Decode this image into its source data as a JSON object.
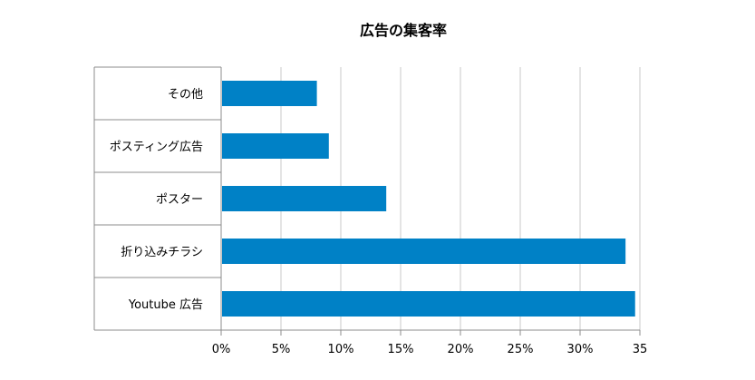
{
  "chart_data": {
    "type": "bar",
    "orientation": "horizontal",
    "title": "広告の集客率",
    "categories": [
      "その他",
      "ポスティング広告",
      "ポスター",
      "折り込みチラシ",
      "Youtube 広告"
    ],
    "values": [
      8,
      9,
      13.8,
      33.8,
      34.6
    ],
    "x_ticks": [
      "0%",
      "5%",
      "10%",
      "15%",
      "20%",
      "25%",
      "30%",
      "35"
    ],
    "xlim": [
      0,
      35
    ],
    "grid": true,
    "legend": "none",
    "bar_color": "#0081c6",
    "grid_color": "#c8c8c8",
    "axis_color": "#8c8c8c"
  }
}
